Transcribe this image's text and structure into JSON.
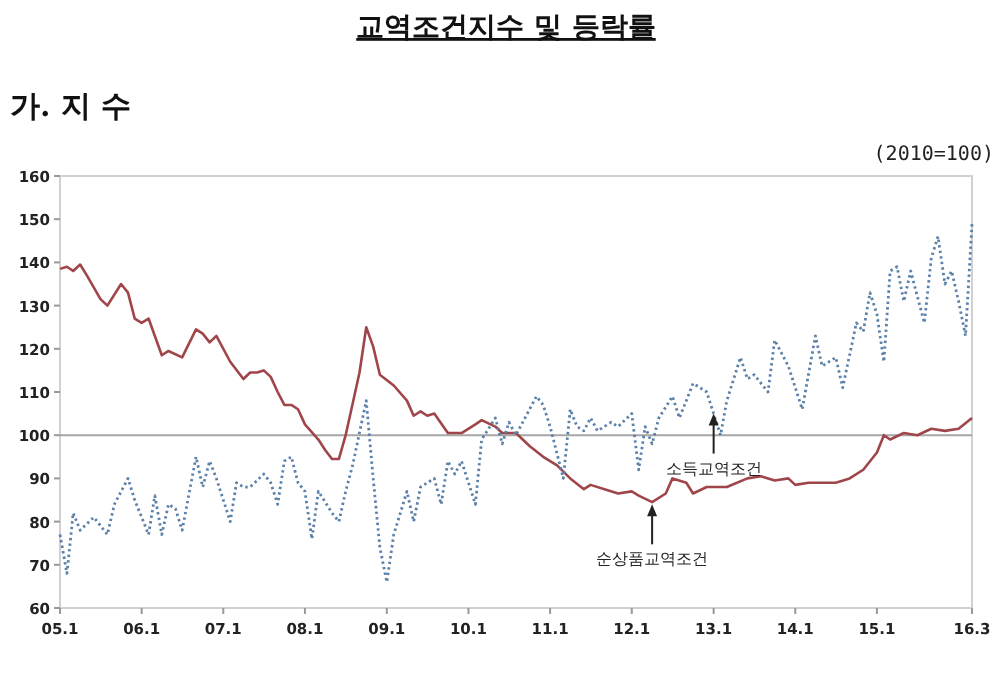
{
  "chart_data": {
    "type": "line",
    "title": "교역조건지수 및 등락률",
    "subtitle": "가. 지 수",
    "annotations": [
      "(2010=100)",
      {
        "text": "소득교역조건",
        "x": "2013-01",
        "y": 105
      },
      {
        "text": "순상품교역조건",
        "x": "2012-04",
        "y": 84
      }
    ],
    "xlim": [
      "2005-01",
      "2016-03"
    ],
    "xticks": [
      {
        "value": "2005-01",
        "label": "05.1"
      },
      {
        "value": "2006-01",
        "label": "06.1"
      },
      {
        "value": "2007-01",
        "label": "07.1"
      },
      {
        "value": "2008-01",
        "label": "08.1"
      },
      {
        "value": "2009-01",
        "label": "09.1"
      },
      {
        "value": "2010-01",
        "label": "10.1"
      },
      {
        "value": "2011-01",
        "label": "11.1"
      },
      {
        "value": "2012-01",
        "label": "12.1"
      },
      {
        "value": "2013-01",
        "label": "13.1"
      },
      {
        "value": "2014-01",
        "label": "14.1"
      },
      {
        "value": "2015-01",
        "label": "15.1"
      },
      {
        "value": "2016-03",
        "label": "16.3"
      }
    ],
    "ylim": [
      60,
      160
    ],
    "yticks": [
      60,
      70,
      80,
      90,
      100,
      110,
      120,
      130,
      140,
      150,
      160
    ],
    "ref_lines": [
      {
        "axis": "y",
        "value": 100,
        "color": "#a6a6a6"
      }
    ],
    "series": [
      {
        "color": "#a0464b",
        "line_style": "solid",
        "x": [
          "2005-01",
          "2005-02",
          "2005-03",
          "2005-04",
          "2005-05",
          "2005-07",
          "2005-08",
          "2005-10",
          "2005-11",
          "2005-12",
          "2006-01",
          "2006-02",
          "2006-04",
          "2006-05",
          "2006-07",
          "2006-09",
          "2006-10",
          "2006-11",
          "2006-12",
          "2007-02",
          "2007-04",
          "2007-05",
          "2007-06",
          "2007-07",
          "2007-08",
          "2007-09",
          "2007-10",
          "2007-11",
          "2007-12",
          "2008-01",
          "2008-03",
          "2008-04",
          "2008-05",
          "2008-06",
          "2008-07",
          "2008-09",
          "2008-10",
          "2008-11",
          "2008-12",
          "2009-02",
          "2009-04",
          "2009-05",
          "2009-06",
          "2009-07",
          "2009-08",
          "2009-10",
          "2009-12",
          "2010-02",
          "2010-03",
          "2010-05",
          "2010-06",
          "2010-08",
          "2010-10",
          "2010-12",
          "2011-02",
          "2011-04",
          "2011-06",
          "2011-07",
          "2011-09",
          "2011-11",
          "2012-01",
          "2012-02",
          "2012-04",
          "2012-06",
          "2012-07",
          "2012-09",
          "2012-10",
          "2012-12",
          "2013-03",
          "2013-06",
          "2013-08",
          "2013-10",
          "2013-12",
          "2014-01",
          "2014-03",
          "2014-07",
          "2014-09",
          "2014-11",
          "2015-01",
          "2015-02",
          "2015-03",
          "2015-05",
          "2015-07",
          "2015-09",
          "2015-11",
          "2016-01",
          "2016-03"
        ],
        "values": [
          138.5,
          139,
          138,
          139.5,
          137,
          131.5,
          130,
          135,
          133,
          127,
          126,
          127,
          118.5,
          119.5,
          118,
          124.5,
          123.5,
          121.5,
          123,
          117,
          113,
          114.5,
          114.5,
          115,
          113.5,
          110,
          107,
          107,
          106,
          102.5,
          99,
          96.5,
          94.5,
          94.5,
          100,
          114.5,
          125,
          120.5,
          114,
          111.5,
          108,
          104.5,
          105.5,
          104.5,
          105,
          100.5,
          100.5,
          102.5,
          103.5,
          102,
          100.5,
          100.5,
          97.5,
          95,
          93,
          90,
          87.5,
          88.5,
          87.5,
          86.5,
          87,
          86,
          84.5,
          86.5,
          90,
          89,
          86.5,
          88,
          88,
          90,
          90.5,
          89.5,
          90,
          88.5,
          89,
          89,
          90,
          92,
          96,
          100,
          99,
          100.5,
          100,
          101.5,
          101,
          101.5,
          104
        ]
      },
      {
        "color": "#5b80aa",
        "line_style": "dotted",
        "x": [
          "2005-01",
          "2005-02",
          "2005-03",
          "2005-04",
          "2005-06",
          "2005-08",
          "2005-09",
          "2005-11",
          "2005-12",
          "2006-02",
          "2006-03",
          "2006-04",
          "2006-05",
          "2006-06",
          "2006-07",
          "2006-09",
          "2006-10",
          "2006-11",
          "2006-12",
          "2007-02",
          "2007-03",
          "2007-04",
          "2007-05",
          "2007-07",
          "2007-08",
          "2007-09",
          "2007-10",
          "2007-11",
          "2007-12",
          "2008-01",
          "2008-02",
          "2008-03",
          "2008-05",
          "2008-06",
          "2008-07",
          "2008-08",
          "2008-10",
          "2008-11",
          "2008-12",
          "2009-01",
          "2009-02",
          "2009-04",
          "2009-05",
          "2009-06",
          "2009-08",
          "2009-09",
          "2009-10",
          "2009-11",
          "2009-12",
          "2010-02",
          "2010-03",
          "2010-05",
          "2010-06",
          "2010-07",
          "2010-08",
          "2010-11",
          "2010-12",
          "2011-01",
          "2011-03",
          "2011-04",
          "2011-05",
          "2011-06",
          "2011-07",
          "2011-08",
          "2011-10",
          "2011-11",
          "2012-01",
          "2012-02",
          "2012-03",
          "2012-04",
          "2012-05",
          "2012-07",
          "2012-08",
          "2012-09",
          "2012-10",
          "2012-12",
          "2013-01",
          "2013-02",
          "2013-03",
          "2013-05",
          "2013-06",
          "2013-07",
          "2013-08",
          "2013-09",
          "2013-10",
          "2013-12",
          "2014-02",
          "2014-04",
          "2014-05",
          "2014-07",
          "2014-08",
          "2014-10",
          "2014-11",
          "2014-12",
          "2015-01",
          "2015-02",
          "2015-03",
          "2015-04",
          "2015-05",
          "2015-06",
          "2015-08",
          "2015-09",
          "2015-10",
          "2015-11",
          "2015-12",
          "2016-01",
          "2016-02",
          "2016-03"
        ],
        "values": [
          77,
          68,
          82,
          78,
          81,
          77,
          84,
          90,
          85,
          77,
          86,
          77,
          84,
          83,
          78,
          95,
          88,
          94,
          90,
          80,
          89,
          88,
          88,
          91,
          89,
          84,
          94,
          95,
          89,
          87,
          76,
          87,
          82,
          80,
          87,
          93,
          108,
          90,
          74,
          66,
          77,
          87,
          80,
          88,
          90,
          84,
          94,
          91,
          94,
          84,
          99,
          104,
          98,
          103,
          100,
          109,
          107,
          102,
          90,
          106,
          102,
          101,
          104,
          101,
          103,
          102,
          105,
          92,
          102,
          98,
          104,
          109,
          104,
          108,
          112,
          110,
          105,
          100,
          108,
          118,
          113,
          114,
          112,
          110,
          122,
          116,
          106,
          123,
          116,
          118,
          111,
          126,
          124,
          133,
          128,
          117,
          138,
          139,
          131,
          138,
          126,
          141,
          146,
          135,
          138,
          131,
          123,
          149
        ]
      }
    ]
  }
}
